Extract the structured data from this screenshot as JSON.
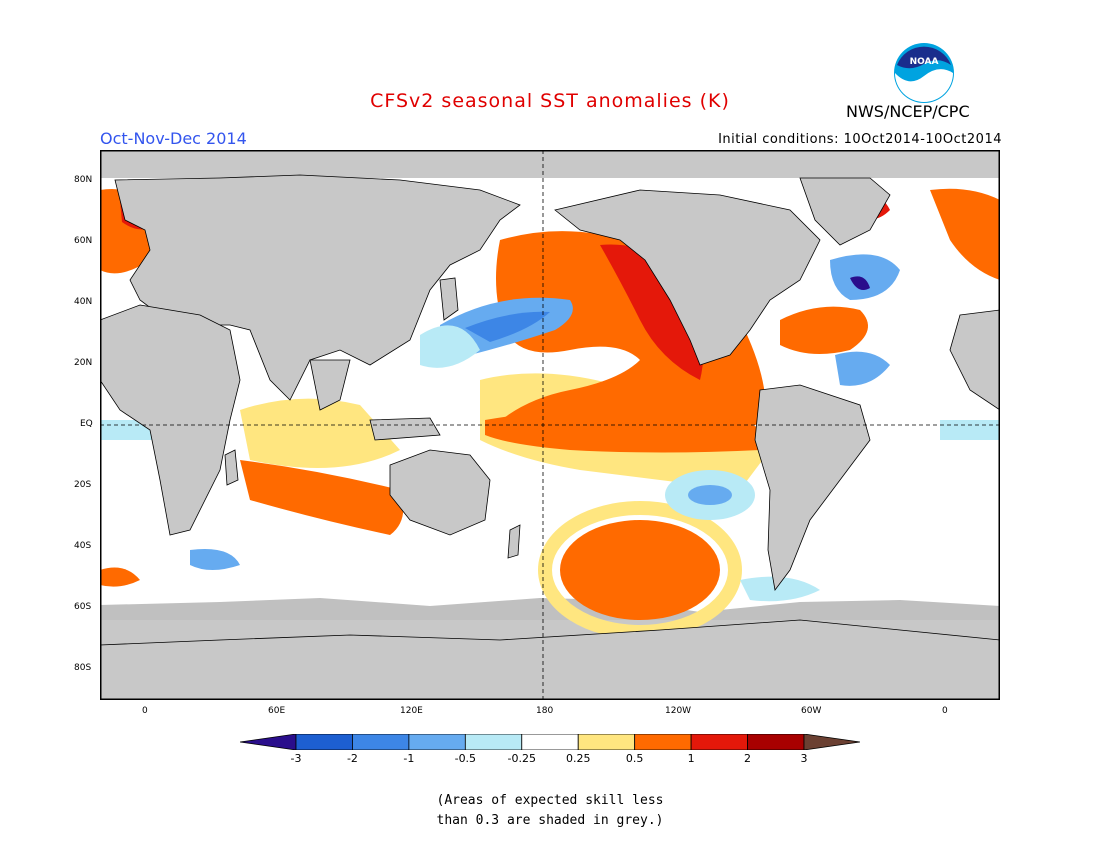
{
  "header": {
    "title": "CFSv2 seasonal SST anomalies (K)",
    "season": "Oct-Nov-Dec 2014",
    "initial_conditions": "Initial conditions: 10Oct2014-10Oct2014",
    "agency": "NWS/NCEP/CPC",
    "logo_text": "NOAA"
  },
  "map": {
    "lat_labels": [
      "80N",
      "60N",
      "40N",
      "20N",
      "EQ",
      "20S",
      "40S",
      "60S",
      "80S"
    ],
    "lon_labels": [
      "0",
      "60E",
      "120E",
      "180",
      "120W",
      "60W",
      "0"
    ]
  },
  "colorbar": {
    "labels": [
      "-3",
      "-2",
      "-1",
      "-0.5",
      "-0.25",
      "0.25",
      "0.5",
      "1",
      "2",
      "3"
    ],
    "colors": [
      "#2a0e8c",
      "#1d5fd1",
      "#3d86e6",
      "#66abf0",
      "#b8eaf6",
      "#ffffff",
      "#ffe680",
      "#ff6a00",
      "#e4180a",
      "#a80000",
      "#6b4032"
    ]
  },
  "note": {
    "line1": "(Areas of expected skill less",
    "line2": "than 0.3 are shaded in grey.)"
  },
  "colors": {
    "land": "#c8c8c8",
    "low_skill_grey": "#c0c0c0",
    "title_red": "#e00000",
    "season_blue": "#3355ee"
  }
}
